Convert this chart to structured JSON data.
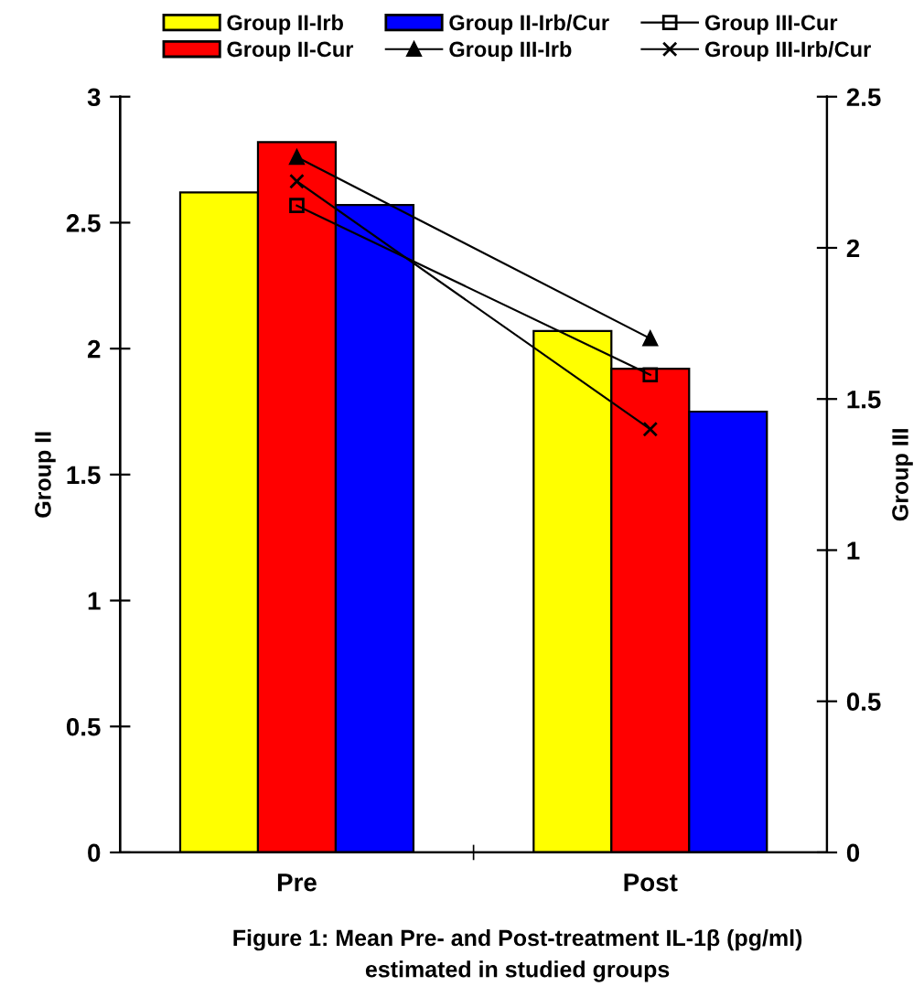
{
  "chart_data": {
    "type": "bar",
    "categories": [
      "Pre",
      "Post"
    ],
    "ylabel": "Group II",
    "y2label": "Group III",
    "series": [
      {
        "name": "Group II-Irb",
        "color": "#ffff00",
        "values": [
          2.62,
          2.07
        ]
      },
      {
        "name": "Group II-Cur",
        "color": "#ff0000",
        "values": [
          2.82,
          1.92
        ]
      },
      {
        "name": "Group II-Irb/Cur",
        "color": "#0000ff",
        "values": [
          2.57,
          1.75
        ]
      },
      {
        "name": "Group III-Irb",
        "type": "line",
        "axis": "y2",
        "color": "#000000",
        "marker": "triangle",
        "values": [
          2.3,
          1.7
        ]
      },
      {
        "name": "Group III-Cur",
        "type": "line",
        "axis": "y2",
        "color": "#000000",
        "marker": "square",
        "values": [
          2.14,
          1.58
        ]
      },
      {
        "name": "Group III-Irb/Cur",
        "type": "line",
        "axis": "y2",
        "color": "#000000",
        "marker": "cross",
        "values": [
          2.22,
          1.4
        ]
      }
    ],
    "ylim": [
      0,
      3
    ],
    "yticks": [
      0,
      0.5,
      1,
      1.5,
      2,
      2.5,
      3
    ],
    "y2lim": [
      0,
      2.5
    ],
    "y2ticks": [
      0,
      0.5,
      1,
      1.5,
      2,
      2.5
    ],
    "grid": false,
    "legend": "top",
    "annotations": [
      "Figure 1: Mean Pre- and Post-treatment IL-1β (pg/ml)\nestimated in studied groups"
    ]
  }
}
